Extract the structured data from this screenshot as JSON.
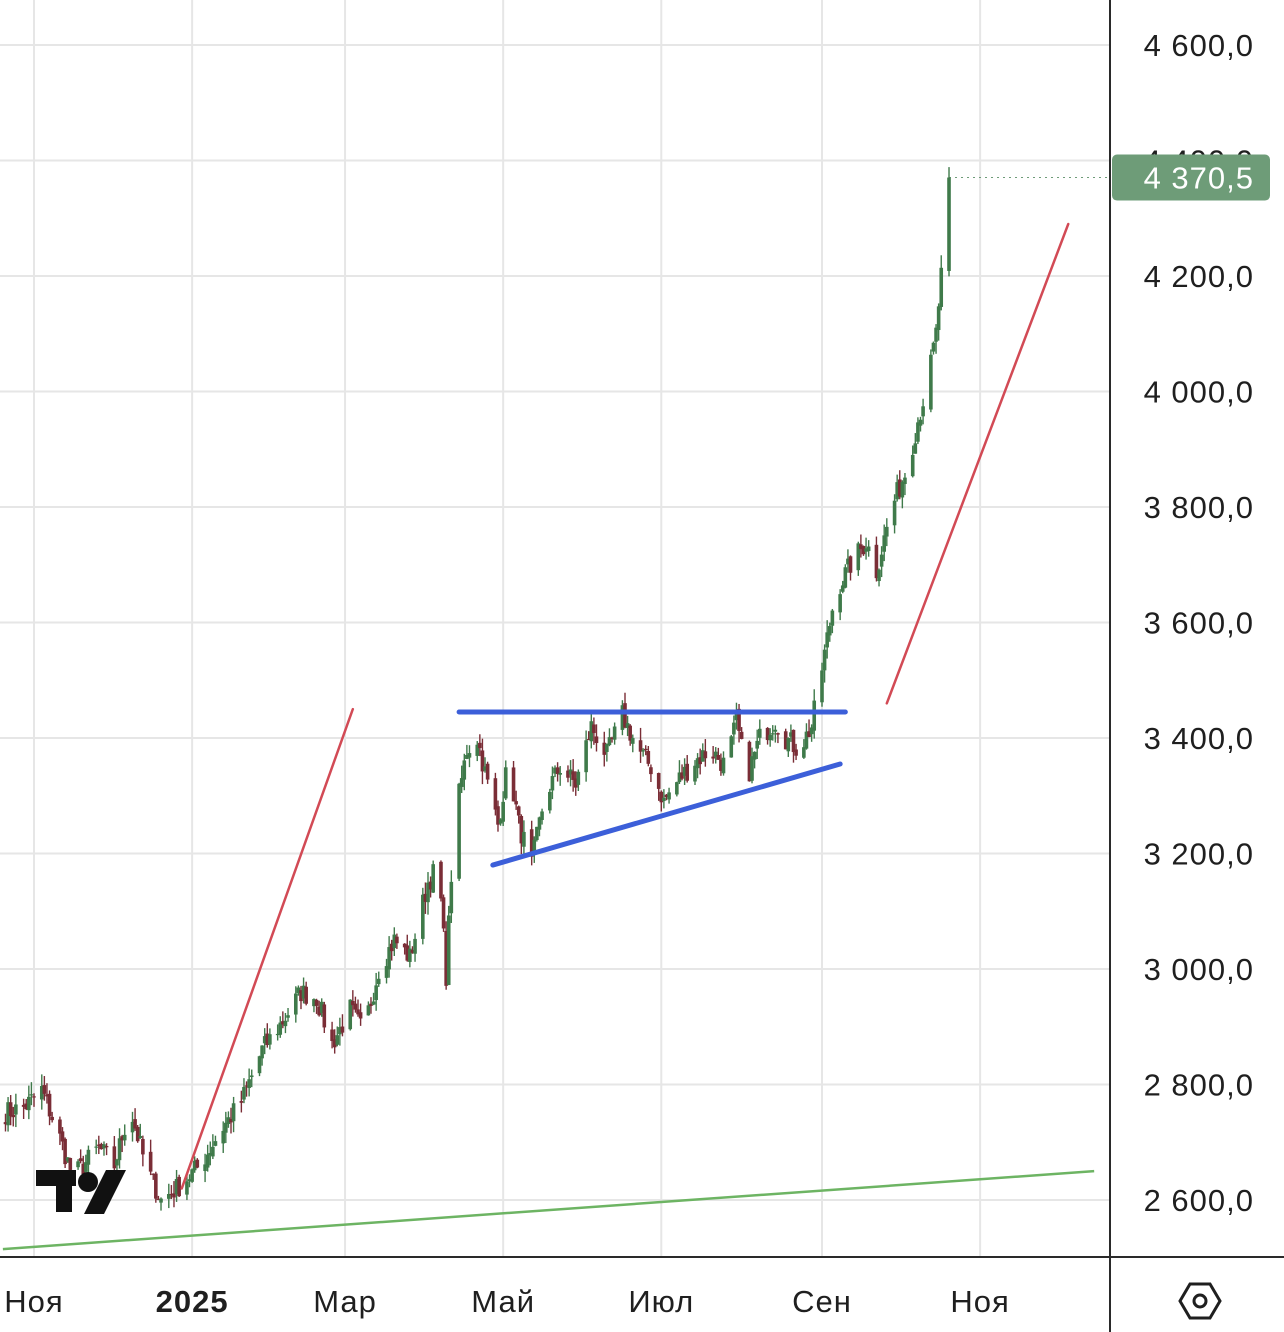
{
  "chart_data": {
    "type": "candlestick",
    "y_axis": {
      "ticks": [
        "4 600,0",
        "4 400,0",
        "4 200,0",
        "4 000,0",
        "3 800,0",
        "3 600,0",
        "3 400,0",
        "3 200,0",
        "3 000,0",
        "2 800,0",
        "2 600,0"
      ],
      "tick_values": [
        4600,
        4400,
        4200,
        4000,
        3800,
        3600,
        3400,
        3200,
        3000,
        2800,
        2600
      ],
      "range": [
        2520,
        4700
      ]
    },
    "x_axis": {
      "ticks": [
        {
          "label": "Ноя",
          "bold": false
        },
        {
          "label": "2025",
          "bold": true
        },
        {
          "label": "Мар",
          "bold": false
        },
        {
          "label": "Май",
          "bold": false
        },
        {
          "label": "Июл",
          "bold": false
        },
        {
          "label": "Сен",
          "bold": false
        },
        {
          "label": "Ноя",
          "bold": false
        }
      ],
      "tick_dates": [
        "2024-11-01",
        "2025-01-01",
        "2025-03-01",
        "2025-05-01",
        "2025-07-01",
        "2025-09-01",
        "2025-11-01"
      ],
      "range": [
        "2024-10-20",
        "2025-12-15"
      ]
    },
    "last_price": {
      "label": "4 370,5",
      "value": 4370.5,
      "color": "#6e9c78"
    },
    "path": [
      [
        "2024-10-20",
        2750
      ],
      [
        "2024-10-28",
        2760
      ],
      [
        "2024-11-04",
        2790
      ],
      [
        "2024-11-10",
        2720
      ],
      [
        "2024-11-16",
        2640
      ],
      [
        "2024-11-22",
        2670
      ],
      [
        "2024-11-26",
        2690
      ],
      [
        "2024-12-02",
        2660
      ],
      [
        "2024-12-08",
        2760
      ],
      [
        "2024-12-14",
        2660
      ],
      [
        "2024-12-20",
        2600
      ],
      [
        "2024-12-26",
        2620
      ],
      [
        "2025-01-04",
        2660
      ],
      [
        "2025-01-12",
        2720
      ],
      [
        "2025-01-20",
        2770
      ],
      [
        "2025-01-28",
        2860
      ],
      [
        "2025-02-05",
        2910
      ],
      [
        "2025-02-12",
        2960
      ],
      [
        "2025-02-18",
        2950
      ],
      [
        "2025-02-24",
        2870
      ],
      [
        "2025-03-03",
        2930
      ],
      [
        "2025-03-08",
        2890
      ],
      [
        "2025-03-14",
        3000
      ],
      [
        "2025-03-20",
        3050
      ],
      [
        "2025-03-26",
        3020
      ],
      [
        "2025-04-02",
        3150
      ],
      [
        "2025-04-06",
        3180
      ],
      [
        "2025-04-09",
        2990
      ],
      [
        "2025-04-12",
        3250
      ],
      [
        "2025-04-17",
        3380
      ],
      [
        "2025-04-21",
        3400
      ],
      [
        "2025-04-25",
        3320
      ],
      [
        "2025-04-29",
        3250
      ],
      [
        "2025-05-03",
        3360
      ],
      [
        "2025-05-07",
        3250
      ],
      [
        "2025-05-12",
        3180
      ],
      [
        "2025-05-17",
        3300
      ],
      [
        "2025-05-23",
        3350
      ],
      [
        "2025-05-29",
        3320
      ],
      [
        "2025-06-04",
        3420
      ],
      [
        "2025-06-10",
        3370
      ],
      [
        "2025-06-16",
        3440
      ],
      [
        "2025-06-22",
        3380
      ],
      [
        "2025-06-27",
        3350
      ],
      [
        "2025-07-02",
        3290
      ],
      [
        "2025-07-08",
        3330
      ],
      [
        "2025-07-14",
        3360
      ],
      [
        "2025-07-20",
        3380
      ],
      [
        "2025-07-26",
        3350
      ],
      [
        "2025-07-30",
        3430
      ],
      [
        "2025-08-03",
        3330
      ],
      [
        "2025-08-08",
        3400
      ],
      [
        "2025-08-14",
        3430
      ],
      [
        "2025-08-18",
        3400
      ],
      [
        "2025-08-23",
        3380
      ],
      [
        "2025-08-28",
        3420
      ],
      [
        "2025-09-01",
        3520
      ],
      [
        "2025-09-06",
        3650
      ],
      [
        "2025-09-12",
        3700
      ],
      [
        "2025-09-18",
        3740
      ],
      [
        "2025-09-22",
        3690
      ],
      [
        "2025-09-28",
        3800
      ],
      [
        "2025-10-04",
        3870
      ],
      [
        "2025-10-08",
        3950
      ],
      [
        "2025-10-12",
        4020
      ],
      [
        "2025-10-15",
        4100
      ],
      [
        "2025-10-18",
        4250
      ],
      [
        "2025-10-20",
        4370.5
      ]
    ],
    "annotations": {
      "resistance_line": {
        "color": "#3c5fd9",
        "points": [
          [
            "2025-04-14",
            3445
          ],
          [
            "2025-09-10",
            3445
          ]
        ]
      },
      "support_line": {
        "color": "#3c5fd9",
        "points": [
          [
            "2025-04-27",
            3180
          ],
          [
            "2025-09-08",
            3355
          ]
        ]
      },
      "red_arrow_1": {
        "color": "#d24a55",
        "points": [
          [
            "2024-12-28",
            2620
          ],
          [
            "2025-03-04",
            3450
          ]
        ]
      },
      "red_arrow_2": {
        "color": "#d24a55",
        "points": [
          [
            "2025-09-26",
            3460
          ],
          [
            "2025-12-05",
            4290
          ]
        ]
      },
      "green_trend": {
        "color": "#6db463",
        "points": [
          [
            "2024-10-20",
            2515
          ],
          [
            "2025-12-15",
            2650
          ]
        ]
      }
    },
    "grid": true
  }
}
